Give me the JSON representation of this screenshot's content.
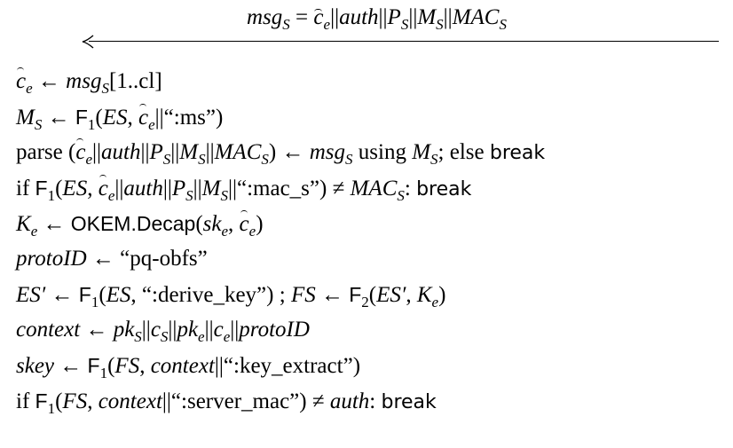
{
  "header": {
    "message": "msgS = ĉe||auth||PS||MS||MACS",
    "msg_var": "msg",
    "msg_sub": "S",
    "eq": " = ",
    "c": "c",
    "e": "e",
    "auth": "auth",
    "P": "P",
    "M": "M",
    "MAC": "MAC",
    "S": "S",
    "sep": "||"
  },
  "steps": [
    "ĉe ← msgS[1..cl]",
    "MS ← F1(ES, ĉe||\":ms\")",
    "parse (ĉe||auth||PS||MS||MACS) ← msgS using MS; else break",
    "if F1(ES, ĉe||auth||PS||MS||\":mac_s\") ≠ MACS: break",
    "Ke ← OKEM.Decap(ske, ĉe)",
    "protoID ← \"pq-obfs\"",
    "ES′ ← F1(ES, \":derive_key\") ; FS ← F2(ES′, Ke)",
    "context ← pkS||cS||pke||ce||protoID",
    "skey ← F1(FS, context||\":key_extract\")",
    "if F1(FS, context||\":server_mac\") ≠ auth: break"
  ],
  "tokens": {
    "arrow": "←",
    "neq": "≠",
    "open_quote": "“",
    "close_quote": "”",
    "sep": "||",
    "F": "F",
    "one": "1",
    "two": "2",
    "ES": "ES",
    "FS": "FS",
    "ES_prime": "ES′",
    "K": "K",
    "sk": "sk",
    "pk": "pk",
    "c": "c",
    "e": "e",
    "S": "S",
    "M": "M",
    "P": "P",
    "MAC": "MAC",
    "auth": "auth",
    "msg": "msg",
    "range": "[1..cl]",
    "ms": ":ms",
    "mac_s": ":mac_s",
    "parse": "parse",
    "using": "using",
    "else": "; else",
    "break": "break",
    "if": "if",
    "OKEM": "OKEM.Decap",
    "protoID": "protoID",
    "pq_obfs": "pq-obfs",
    "derive_key": ":derive_key",
    "semicolon": " ; ",
    "context": "context",
    "skey": "skey",
    "key_extract": ":key_extract",
    "server_mac": ":server_mac"
  }
}
